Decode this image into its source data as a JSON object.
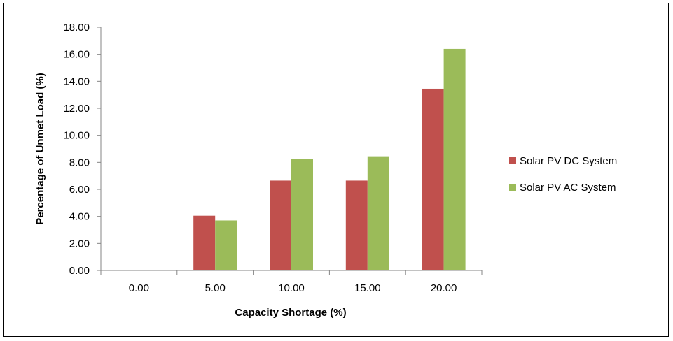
{
  "chart_data": {
    "type": "bar",
    "categories": [
      "0.00",
      "5.00",
      "10.00",
      "15.00",
      "20.00"
    ],
    "series": [
      {
        "name": "Solar PV DC System",
        "color": "#c0504d",
        "values": [
          0,
          4.05,
          6.65,
          6.65,
          13.45
        ]
      },
      {
        "name": "Solar PV AC System",
        "color": "#9bbb59",
        "values": [
          0,
          3.7,
          8.25,
          8.45,
          16.4
        ]
      }
    ],
    "xlabel": "Capacity Shortage (%)",
    "ylabel": "Percentage of Unmet Load (%)",
    "ylim": [
      0,
      18
    ],
    "yticks": [
      0,
      2,
      4,
      6,
      8,
      10,
      12,
      14,
      16,
      18
    ],
    "ytick_format_decimals": 2,
    "grid": false,
    "legend_position": "right"
  }
}
